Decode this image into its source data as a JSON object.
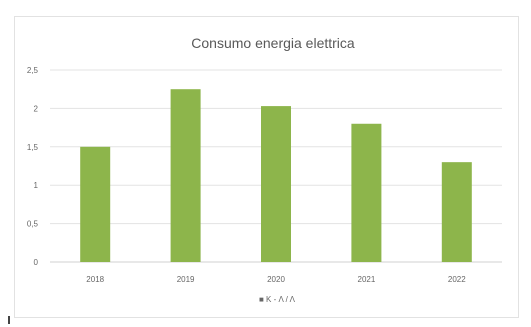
{
  "chart_data": {
    "type": "bar",
    "title": "Consumo energia elettrica",
    "categories": [
      "2018",
      "2019",
      "2020",
      "2021",
      "2022"
    ],
    "series": [
      {
        "name": "■ K - Λ / Λ",
        "values": [
          1.5,
          2.25,
          2.03,
          1.8,
          1.3
        ]
      }
    ],
    "ylim": [
      0,
      2.5
    ],
    "yticks": [
      0,
      0.5,
      1,
      1.5,
      2,
      2.5
    ],
    "ytick_labels": [
      "0",
      "0,5",
      "1",
      "1,5",
      "2",
      "2,5"
    ],
    "grid": true,
    "legend_position": "bottom",
    "bar_color": "#8db54b"
  }
}
